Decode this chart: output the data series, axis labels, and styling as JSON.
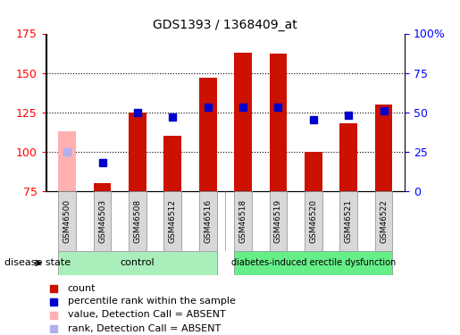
{
  "title": "GDS1393 / 1368409_at",
  "samples": [
    "GSM46500",
    "GSM46503",
    "GSM46508",
    "GSM46512",
    "GSM46516",
    "GSM46518",
    "GSM46519",
    "GSM46520",
    "GSM46521",
    "GSM46522"
  ],
  "count_values": [
    113,
    80,
    125,
    110,
    147,
    163,
    162,
    100,
    118,
    130
  ],
  "count_absent": [
    true,
    false,
    false,
    false,
    false,
    false,
    false,
    false,
    false,
    false
  ],
  "rank_values": [
    25,
    18,
    50,
    47,
    53,
    53,
    53,
    45,
    48,
    51
  ],
  "rank_absent": [
    true,
    false,
    false,
    false,
    false,
    false,
    false,
    false,
    false,
    false
  ],
  "ylim_left": [
    75,
    175
  ],
  "ylim_right": [
    0,
    100
  ],
  "yticks_left": [
    75,
    100,
    125,
    150,
    175
  ],
  "yticks_right": [
    0,
    25,
    50,
    75,
    100
  ],
  "ytick_labels_right": [
    "0",
    "25",
    "50",
    "75",
    "100%"
  ],
  "bar_color": "#cc1100",
  "bar_absent_color": "#ffb0b0",
  "rank_color": "#0000cc",
  "rank_absent_color": "#b0b0ee",
  "control_indices": [
    0,
    1,
    2,
    3,
    4
  ],
  "disease_indices": [
    5,
    6,
    7,
    8,
    9
  ],
  "control_label": "control",
  "disease_label": "diabetes-induced erectile dysfunction",
  "disease_state_label": "disease state",
  "group_color_control": "#aaeebb",
  "group_color_disease": "#66ee88",
  "legend_items": [
    {
      "label": "count",
      "color": "#cc1100"
    },
    {
      "label": "percentile rank within the sample",
      "color": "#0000cc"
    },
    {
      "label": "value, Detection Call = ABSENT",
      "color": "#ffb0b0"
    },
    {
      "label": "rank, Detection Call = ABSENT",
      "color": "#b0b0ee"
    }
  ],
  "bar_width": 0.5,
  "rank_marker_size": 6,
  "background_color": "#ffffff"
}
